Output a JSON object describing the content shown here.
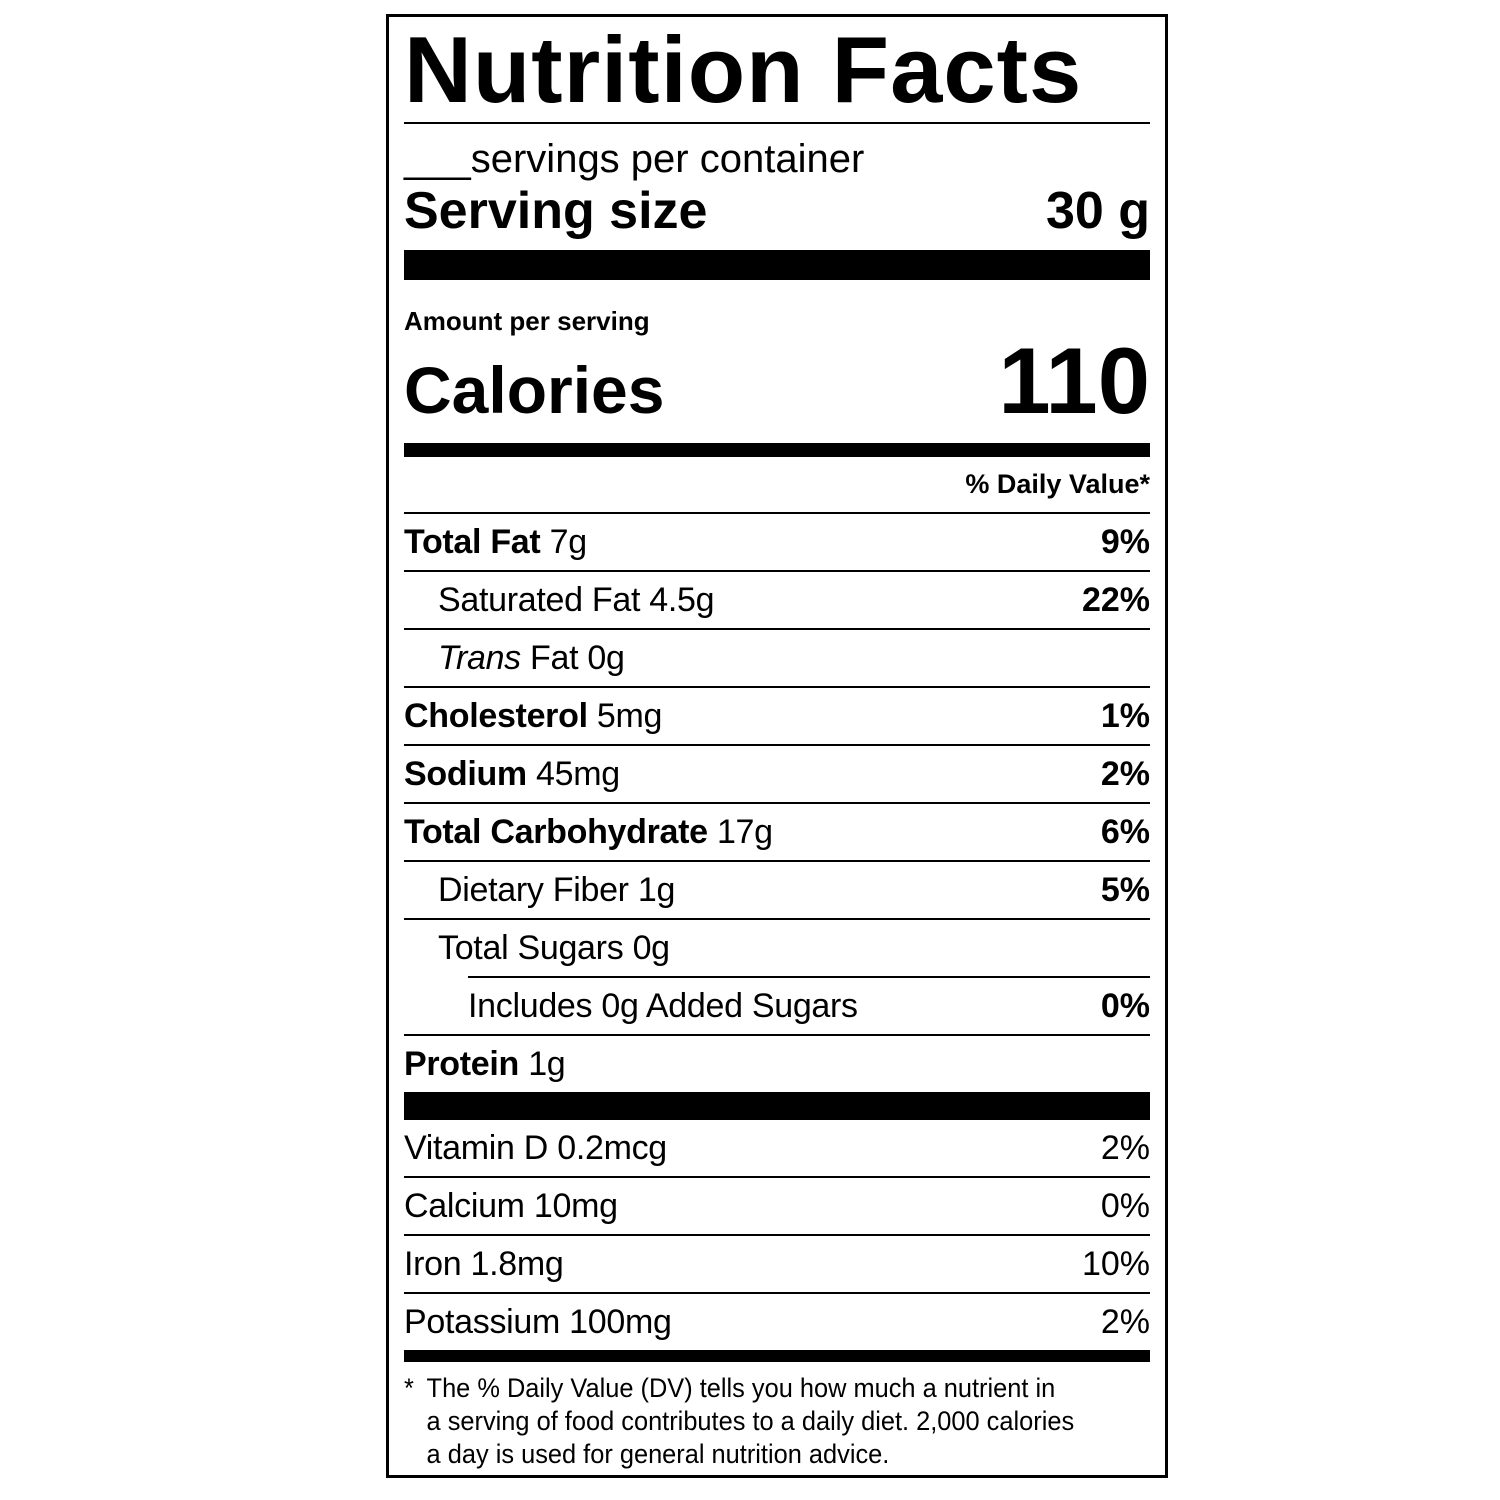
{
  "label": {
    "title": "Nutrition Facts",
    "servings_per_container": "___servings per container",
    "serving_size": {
      "label": "Serving size",
      "value": "30 g"
    },
    "amount_per_serving": "Amount per serving",
    "calories": {
      "label": "Calories",
      "value": "110"
    },
    "daily_value_header": "% Daily Value*",
    "nutrients": [
      {
        "name": "Total Fat",
        "amount": "7g",
        "pct": "9%"
      },
      {
        "name": "Saturated Fat",
        "amount": "4.5g",
        "pct": "22%"
      },
      {
        "name": "Trans",
        "amount": "Fat 0g",
        "pct": ""
      },
      {
        "name": "Cholesterol",
        "amount": "5mg",
        "pct": "1%"
      },
      {
        "name": "Sodium",
        "amount": "45mg",
        "pct": "2%"
      },
      {
        "name": "Total Carbohydrate",
        "amount": "17g",
        "pct": "6%"
      },
      {
        "name": "Dietary Fiber",
        "amount": "1g",
        "pct": "5%"
      },
      {
        "name": "Total Sugars",
        "amount": "0g",
        "pct": ""
      },
      {
        "name": "Includes 0g Added Sugars",
        "amount": "",
        "pct": "0%"
      },
      {
        "name": "Protein",
        "amount": "1g",
        "pct": ""
      }
    ],
    "vitamins": [
      {
        "name": "Vitamin D 0.2mcg",
        "pct": "2%"
      },
      {
        "name": "Calcium 10mg",
        "pct": "0%"
      },
      {
        "name": "Iron 1.8mg",
        "pct": "10%"
      },
      {
        "name": "Potassium 100mg",
        "pct": "2%"
      }
    ],
    "footnote": {
      "marker": "*",
      "lines": [
        "The % Daily Value (DV) tells you how much a nutrient in",
        "a serving of food contributes to a daily diet. 2,000 calories",
        "a day is used for general nutrition advice."
      ]
    },
    "colors": {
      "ink": "#000000",
      "background": "#ffffff"
    }
  }
}
